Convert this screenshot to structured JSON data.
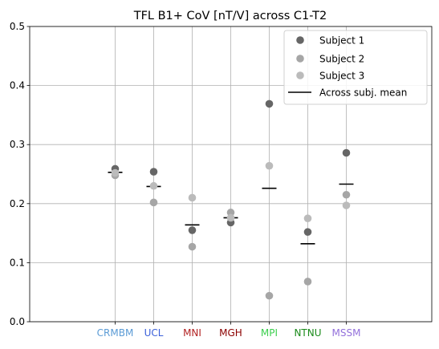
{
  "chart_data": {
    "type": "scatter",
    "title": "TFL B1+ CoV [nT/V] across C1-T2",
    "xlabel": "",
    "ylabel": "",
    "ylim": [
      0.0,
      0.5
    ],
    "yticks": [
      "0.0",
      "0.1",
      "0.2",
      "0.3",
      "0.4",
      "0.5"
    ],
    "grid": true,
    "legend_position": "top-right",
    "categories": [
      "CRMBM",
      "UCL",
      "MNI",
      "MGH",
      "MPI",
      "NTNU",
      "MSSM"
    ],
    "category_colors": [
      "#5b9bd5",
      "#3a5fd9",
      "#b22222",
      "#8b0000",
      "#3ccf4e",
      "#1a8a1a",
      "#9370db"
    ],
    "series": [
      {
        "name": "Subject 1",
        "color": "#666666",
        "values": [
          0.259,
          0.254,
          0.155,
          0.168,
          0.369,
          0.152,
          0.286
        ]
      },
      {
        "name": "Subject 2",
        "color": "#a6a6a6",
        "values": [
          0.248,
          0.202,
          0.127,
          0.185,
          0.044,
          0.068,
          0.215
        ]
      },
      {
        "name": "Subject 3",
        "color": "#bbbbbb",
        "values": [
          0.252,
          0.23,
          0.21,
          0.176,
          0.264,
          0.175,
          0.197
        ]
      }
    ],
    "mean": {
      "name": "Across subj. mean",
      "color": "#000000",
      "values": [
        0.253,
        0.229,
        0.164,
        0.176,
        0.226,
        0.132,
        0.233
      ]
    }
  }
}
